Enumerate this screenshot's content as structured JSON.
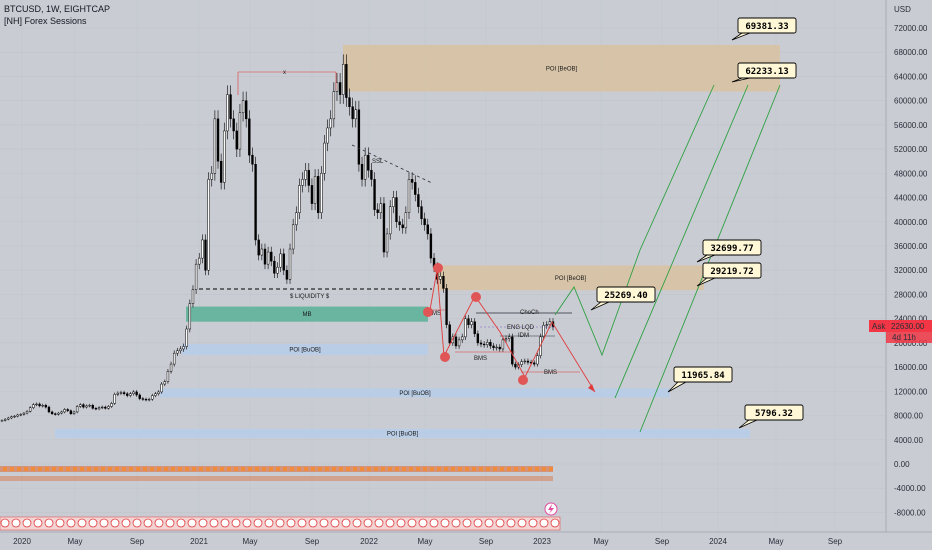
{
  "header": {
    "symbol_line": "BTCUSD, 1W, EIGHTCAP",
    "indicator_line": "[NH] Forex Sessions"
  },
  "colors": {
    "background": "#c9ccd3",
    "bearish_zone": "#d8c3a3",
    "bullish_zone": "#b8cde8",
    "mitigation_zone": "#5fb39a",
    "candle": "#000000",
    "green_projection": "#2ea043",
    "red_projection": "#e03b3b",
    "pivot_marker": "#e05555",
    "ask_badge": "#f23645"
  },
  "price_axis": {
    "currency": "USD",
    "ticks": [
      "72000.00",
      "68000.00",
      "64000.00",
      "60000.00",
      "56000.00",
      "52000.00",
      "48000.00",
      "44000.00",
      "40000.00",
      "36000.00",
      "32000.00",
      "28000.00",
      "24000.00",
      "20000.00",
      "16000.00",
      "12000.00",
      "8000.00",
      "4000.00",
      "0.00",
      "-4000.00",
      "-8000.00"
    ],
    "ask_label": "Ask",
    "ask_value": "22630.00",
    "countdown": "4d 11h"
  },
  "time_axis": {
    "ticks": [
      "2020",
      "May",
      "Sep",
      "2021",
      "May",
      "Sep",
      "2022",
      "May",
      "Sep",
      "2023",
      "May",
      "Sep",
      "2024",
      "May",
      "Sep"
    ]
  },
  "chart_data": {
    "type": "candlestick",
    "title": "BTCUSD, 1W, EIGHTCAP",
    "ylim": [
      -11000,
      76000
    ],
    "zones": [
      {
        "label": "POI [BeOB]",
        "kind": "bearish",
        "low": 61500,
        "high": 69200
      },
      {
        "label": "POI [BeOB]",
        "kind": "bearish",
        "low": 28700,
        "high": 32800
      },
      {
        "label": "MB",
        "kind": "mitigation",
        "low": 23500,
        "high": 26000
      },
      {
        "label": "POI [BuOB]",
        "kind": "bullish",
        "low": 18000,
        "high": 19800
      },
      {
        "label": "POI [BuOB]",
        "kind": "bullish",
        "low": 11000,
        "high": 12500
      },
      {
        "label": "POI [BuOB]",
        "kind": "bullish",
        "low": 4300,
        "high": 5800
      }
    ],
    "annotations": [
      "$ LIQUIDITY $",
      "SSL",
      "ChoCh",
      "ENG LQD",
      "IDM",
      "BMS",
      "BMS",
      "BMS",
      "x"
    ],
    "price_levels": [
      69381.33,
      62233.13,
      32699.77,
      29219.72,
      25269.4,
      11965.84,
      5796.32
    ],
    "weekly_closes": [
      7200,
      7400,
      7600,
      7800,
      7900,
      8100,
      8200,
      8400,
      8700,
      9300,
      9800,
      9900,
      9600,
      9700,
      9400,
      8600,
      8300,
      8200,
      8400,
      8600,
      9000,
      8800,
      8300,
      8600,
      9500,
      9800,
      9400,
      9600,
      9700,
      9200,
      9100,
      9300,
      9400,
      9200,
      9500,
      10000,
      11500,
      11700,
      11800,
      11600,
      11300,
      11600,
      11900,
      11400,
      10800,
      10700,
      10600,
      10700,
      11300,
      11600,
      11900,
      13200,
      13600,
      15300,
      16500,
      18300,
      18700,
      19000,
      19400,
      22300,
      26500,
      28800,
      33000,
      34000,
      37000,
      32000,
      47000,
      48000,
      57000,
      50000,
      46500,
      55000,
      61000,
      57000,
      55000,
      52000,
      58000,
      60000,
      57000,
      51000,
      49500,
      37000,
      34500,
      35500,
      33000,
      35000,
      33500,
      31500,
      32500,
      34700,
      32000,
      30500,
      35500,
      39500,
      41500,
      46000,
      47000,
      48500,
      46000,
      43000,
      47500,
      41500,
      48000,
      53000,
      55500,
      57000,
      61500,
      63000,
      61000,
      66000,
      60500,
      59000,
      57000,
      58500,
      49500,
      47000,
      51000,
      48500,
      47000,
      42000,
      41500,
      43000,
      35000,
      38000,
      42500,
      44000,
      40000,
      39500,
      39000,
      41500,
      47000,
      46500,
      44500,
      42500,
      40500,
      39500,
      38000,
      34000,
      32500,
      30500,
      31000,
      29000,
      23000,
      20000,
      21000,
      19500,
      20500,
      21000,
      24000,
      23000,
      23500,
      21500,
      20000,
      19800,
      19700,
      20100,
      19500,
      19200,
      19300,
      19000,
      20500,
      20700,
      21000,
      16500,
      16000,
      16400,
      16900,
      17000,
      16800,
      16700,
      16500,
      17900,
      21000,
      22900,
      23000,
      23500,
      22630
    ]
  },
  "callouts": [
    "69381.33",
    "62233.13",
    "32699.77",
    "29219.72",
    "25269.40",
    "11965.84",
    "5796.32"
  ]
}
